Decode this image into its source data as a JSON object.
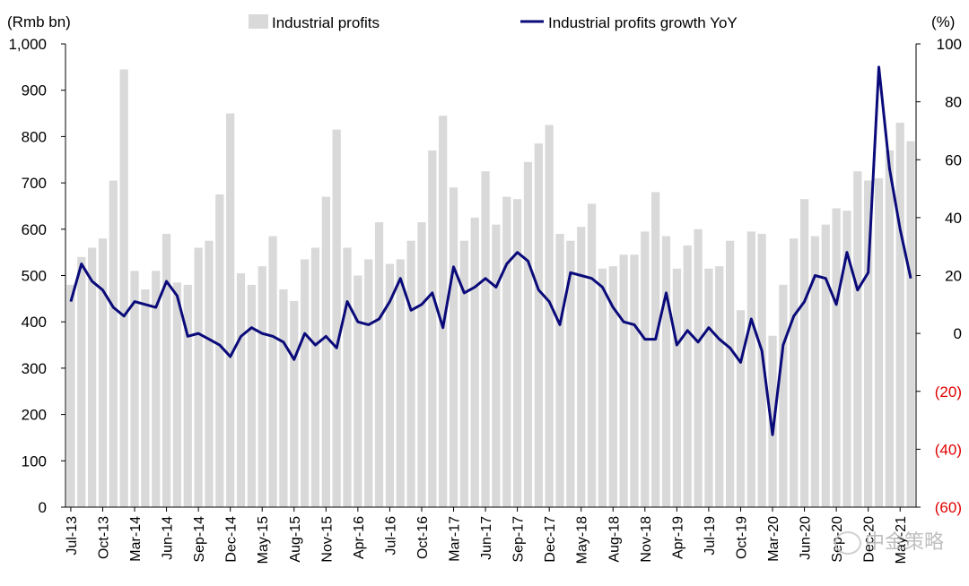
{
  "chart_data": {
    "type": "bar+line",
    "left_axis_label": "(Rmb bn)",
    "right_axis_label": "(%)",
    "legend": {
      "bar_label": "Industrial profits",
      "line_label": "Industrial profits growth YoY",
      "placement": "top-center"
    },
    "left_axis": {
      "min": 0,
      "max": 1000,
      "ticks": [
        "1,000",
        "900",
        "800",
        "700",
        "600",
        "500",
        "400",
        "300",
        "200",
        "100",
        "0"
      ],
      "tick_values": [
        1000,
        900,
        800,
        700,
        600,
        500,
        400,
        300,
        200,
        100,
        0
      ]
    },
    "right_axis": {
      "min": -60,
      "max": 100,
      "ticks": [
        "100",
        "80",
        "60",
        "40",
        "20",
        "0",
        "(20)",
        "(40)",
        "(60)"
      ],
      "tick_values": [
        100,
        80,
        60,
        40,
        20,
        0,
        -20,
        -40,
        -60
      ],
      "negative_color": "#e00000"
    },
    "x_tick_labels": [
      "Jul-13",
      "Oct-13",
      "Mar-14",
      "Jun-14",
      "Sep-14",
      "Dec-14",
      "May-15",
      "Aug-15",
      "Nov-15",
      "Apr-16",
      "Jul-16",
      "Oct-16",
      "Mar-17",
      "Jun-17",
      "Sep-17",
      "Dec-17",
      "May-18",
      "Aug-18",
      "Nov-18",
      "Apr-19",
      "Jul-19",
      "Oct-19",
      "Mar-20",
      "Jun-20",
      "Sep-20",
      "Dec-20",
      "May-21"
    ],
    "x_tick_indices": [
      0,
      3,
      6,
      9,
      12,
      15,
      18,
      21,
      24,
      27,
      30,
      33,
      36,
      39,
      42,
      45,
      48,
      51,
      54,
      57,
      60,
      63,
      66,
      69,
      72,
      75,
      78
    ],
    "bar_color": "#d9d9d9",
    "line_color": "#0a0a7a",
    "bar_values": [
      480,
      540,
      560,
      580,
      705,
      945,
      510,
      470,
      510,
      590,
      485,
      480,
      560,
      575,
      675,
      850,
      505,
      480,
      520,
      585,
      470,
      445,
      535,
      560,
      670,
      815,
      560,
      500,
      535,
      615,
      525,
      535,
      575,
      615,
      770,
      845,
      690,
      575,
      625,
      725,
      610,
      670,
      665,
      745,
      785,
      825,
      590,
      575,
      605,
      655,
      515,
      520,
      545,
      545,
      595,
      680,
      585,
      515,
      565,
      600,
      515,
      520,
      575,
      425,
      595,
      590,
      370,
      480,
      580,
      665,
      585,
      610,
      645,
      640,
      725,
      705,
      710,
      770,
      830,
      790
    ],
    "line_values": [
      11,
      24,
      18,
      15,
      9,
      6,
      11,
      10,
      9,
      18,
      13,
      -1,
      0,
      -2,
      -4,
      -8,
      -1,
      2,
      0,
      -1,
      -3,
      -9,
      0,
      -4,
      -1,
      -5,
      11,
      4,
      3,
      5,
      11,
      19,
      8,
      10,
      14,
      2,
      23,
      14,
      16,
      19,
      16,
      24,
      28,
      25,
      15,
      11,
      3,
      21,
      20,
      19,
      16,
      9,
      4,
      3,
      -2,
      -2,
      14,
      -4,
      1,
      -3,
      2,
      -2,
      -5,
      -10,
      5,
      -6,
      -35,
      -4,
      6,
      11,
      20,
      19,
      10,
      28,
      15,
      21,
      92,
      57,
      36,
      19
    ]
  },
  "watermark": {
    "text": "中金策略",
    "icon": "wechat-logo-icon"
  }
}
